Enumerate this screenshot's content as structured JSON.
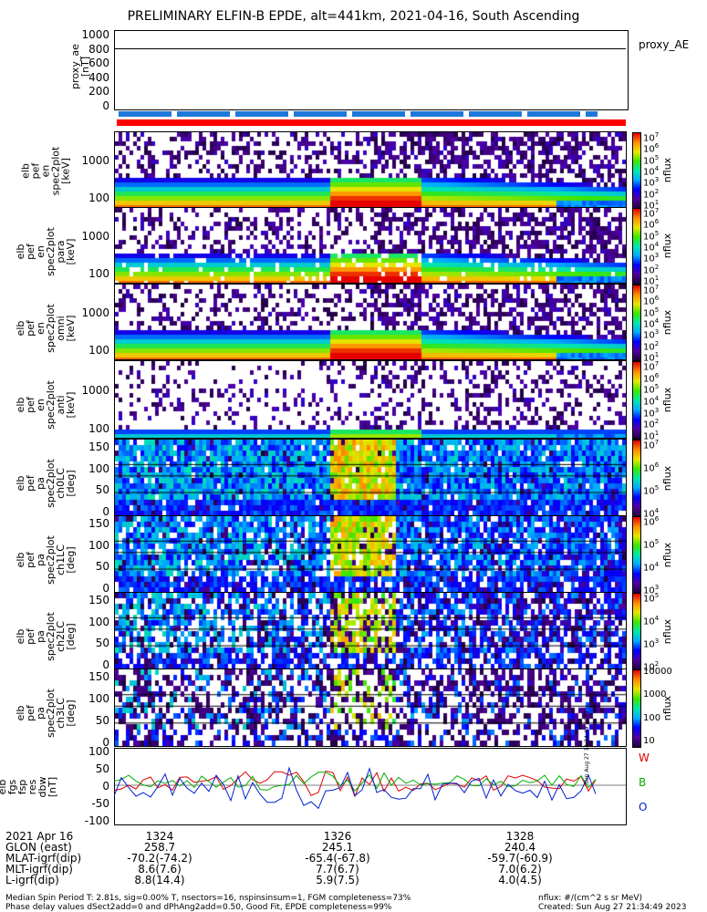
{
  "title": "PRELIMINARY ELFIN-B EPDE, alt=441km, 2021-04-16, South Ascending",
  "proxy": {
    "ylabel_lines": [
      "proxy_ae",
      "[nT]"
    ],
    "ticks": [
      "1000",
      "800",
      "600",
      "400",
      "200",
      "0"
    ],
    "legend": "proxy_AE",
    "value_nT": 780
  },
  "panels": [
    {
      "ylabel_lines": [
        "elb",
        "pef",
        "en",
        "spec2plot",
        "[keV]"
      ],
      "ticks": [
        "1000",
        "100"
      ],
      "cbar_ticks": [
        "10^7",
        "10^6",
        "10^5",
        "10^4",
        "10^3",
        "10^2",
        "10^1"
      ],
      "cbar_unit": "nflux"
    },
    {
      "ylabel_lines": [
        "elb",
        "pef",
        "en",
        "spec2plot",
        "para",
        "[keV]"
      ],
      "ticks": [
        "1000",
        "100"
      ],
      "cbar_ticks": [
        "10^7",
        "10^6",
        "10^5",
        "10^4",
        "10^3",
        "10^2",
        "10^1"
      ],
      "cbar_unit": "nflux"
    },
    {
      "ylabel_lines": [
        "elb",
        "pef",
        "en",
        "spec2plot",
        "omni",
        "[keV]"
      ],
      "ticks": [
        "1000",
        "100"
      ],
      "cbar_ticks": [
        "10^7",
        "10^6",
        "10^5",
        "10^4",
        "10^3",
        "10^2",
        "10^1"
      ],
      "cbar_unit": "nflux"
    },
    {
      "ylabel_lines": [
        "elb",
        "pef",
        "en",
        "spec2plot",
        "anti",
        "[keV]"
      ],
      "ticks": [
        "1000",
        "100"
      ],
      "cbar_ticks": [
        "10^7",
        "10^6",
        "10^5",
        "10^4",
        "10^3",
        "10^2",
        "10^1"
      ],
      "cbar_unit": "nflux"
    },
    {
      "ylabel_lines": [
        "elb",
        "pef",
        "pa",
        "spec2plot",
        "ch0LC",
        "[deg]"
      ],
      "ticks": [
        "150",
        "100",
        "50",
        "0"
      ],
      "cbar_ticks": [
        "10^7",
        "10^6",
        "10^5",
        "10^4"
      ],
      "cbar_unit": "nflux"
    },
    {
      "ylabel_lines": [
        "elb",
        "pef",
        "pa",
        "spec2plot",
        "ch1LC",
        "[deg]"
      ],
      "ticks": [
        "150",
        "100",
        "50",
        "0"
      ],
      "cbar_ticks": [
        "10^6",
        "10^5",
        "10^4",
        "10^3"
      ],
      "cbar_unit": "nflux"
    },
    {
      "ylabel_lines": [
        "elb",
        "pef",
        "pa",
        "spec2plot",
        "ch2LC",
        "[deg]"
      ],
      "ticks": [
        "150",
        "100",
        "50",
        "0"
      ],
      "cbar_ticks": [
        "10^5",
        "10^4",
        "10^3",
        "10^2"
      ],
      "cbar_unit": "nflux"
    },
    {
      "ylabel_lines": [
        "elb",
        "pef",
        "pa",
        "spec2plot",
        "ch3LC",
        "[deg]"
      ],
      "ticks": [
        "150",
        "100",
        "50",
        "0"
      ],
      "cbar_ticks": [
        "10000",
        "1000",
        "100",
        "10"
      ],
      "cbar_unit": "nflux"
    }
  ],
  "fgm": {
    "ylabel_lines": [
      "elb",
      "fgs",
      "fsp",
      "res",
      "dbw",
      "[nT]"
    ],
    "ticks": [
      "100",
      "50",
      "0",
      "-50",
      "-100"
    ],
    "legend": [
      "W",
      "B",
      "O"
    ],
    "side_text": "Sun Aug 27 14:34:49 2023"
  },
  "time_axis": {
    "labels": [
      "1324",
      "1326",
      "1328"
    ]
  },
  "ephemeris": {
    "rows": [
      [
        "2021 Apr 16",
        "1324",
        "1326",
        "1328"
      ],
      [
        "GLON (east)",
        "258.7",
        "245.1",
        "240.4"
      ],
      [
        "MLAT-igrf(dip)",
        "-70.2(-74.2)",
        "-65.4(-67.8)",
        "-59.7(-60.9)"
      ],
      [
        "MLT-igrf(dip)",
        "8.6(7.6)",
        "7.7(6.7)",
        "7.0(6.2)"
      ],
      [
        "L-igrf(dip)",
        "8.8(14.4)",
        "5.9(7.5)",
        "4.0(4.5)"
      ]
    ]
  },
  "footer": {
    "left1": "Median Spin Period T: 2.81s, sig=0.00% T, nsectors=16, nspinsinsum=1, FGM completeness=73%",
    "left2": "Phase delay values dSect2add=0 and dPhAng2add=0.50, Good Fit, EPDE completeness=99%",
    "right1": "nflux: #/(cm^2 s sr MeV)",
    "right2": "Created: Sun Aug 27 21:34:49 2023"
  },
  "colors": {
    "red_bar": "#ff0000",
    "blue_dash": "#1e78dc",
    "fgm_red": "#e00000",
    "fgm_green": "#00b000",
    "fgm_blue": "#0020d0"
  }
}
